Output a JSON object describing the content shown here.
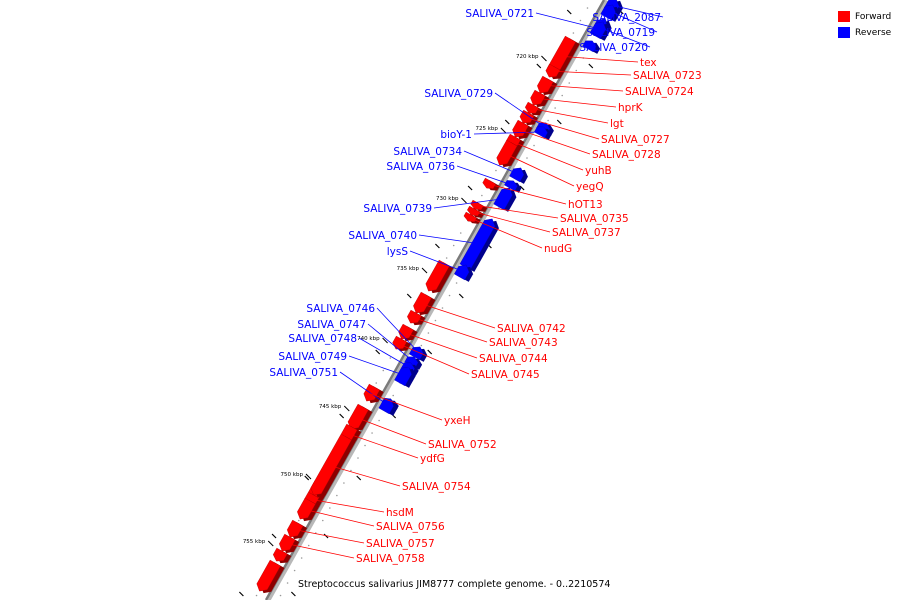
{
  "legend": {
    "forward": {
      "label": "Forward",
      "color": "#ff0000"
    },
    "reverse": {
      "label": "Reverse",
      "color": "#0000ff"
    }
  },
  "caption": "Streptococcus salivarius JIM8777 complete genome. - 0..2210574",
  "scale_labels": [
    "720 kbp",
    "725 kbp",
    "730 kbp",
    "735 kbp",
    "740 kbp",
    "745 kbp",
    "750 kbp",
    "755 kbp"
  ],
  "genes": [
    {
      "name": "SALIVA_2087",
      "strand": "reverse"
    },
    {
      "name": "SALIVA_0719",
      "strand": "reverse"
    },
    {
      "name": "SALIVA_0720",
      "strand": "reverse"
    },
    {
      "name": "SALIVA_0721",
      "strand": "reverse"
    },
    {
      "name": "tex",
      "strand": "forward"
    },
    {
      "name": "SALIVA_0723",
      "strand": "forward"
    },
    {
      "name": "SALIVA_0724",
      "strand": "forward"
    },
    {
      "name": "SALIVA_0729",
      "strand": "reverse"
    },
    {
      "name": "hprK",
      "strand": "forward"
    },
    {
      "name": "lgt",
      "strand": "forward"
    },
    {
      "name": "bioY-1",
      "strand": "reverse"
    },
    {
      "name": "SALIVA_0727",
      "strand": "forward"
    },
    {
      "name": "SALIVA_0734",
      "strand": "reverse"
    },
    {
      "name": "SALIVA_0728",
      "strand": "forward"
    },
    {
      "name": "SALIVA_0736",
      "strand": "reverse"
    },
    {
      "name": "yuhB",
      "strand": "forward"
    },
    {
      "name": "yegQ",
      "strand": "forward"
    },
    {
      "name": "hOT13",
      "strand": "forward"
    },
    {
      "name": "SALIVA_0739",
      "strand": "reverse"
    },
    {
      "name": "SALIVA_0735",
      "strand": "forward"
    },
    {
      "name": "SALIVA_0737",
      "strand": "forward"
    },
    {
      "name": "SALIVA_0740",
      "strand": "reverse"
    },
    {
      "name": "nudG",
      "strand": "forward"
    },
    {
      "name": "lysS",
      "strand": "reverse"
    },
    {
      "name": "SALIVA_0746",
      "strand": "reverse"
    },
    {
      "name": "SALIVA_0742",
      "strand": "forward"
    },
    {
      "name": "SALIVA_0747",
      "strand": "reverse"
    },
    {
      "name": "SALIVA_0748",
      "strand": "reverse"
    },
    {
      "name": "SALIVA_0743",
      "strand": "forward"
    },
    {
      "name": "SALIVA_0749",
      "strand": "reverse"
    },
    {
      "name": "SALIVA_0744",
      "strand": "forward"
    },
    {
      "name": "SALIVA_0751",
      "strand": "reverse"
    },
    {
      "name": "SALIVA_0745",
      "strand": "forward"
    },
    {
      "name": "yxeH",
      "strand": "forward"
    },
    {
      "name": "SALIVA_0752",
      "strand": "forward"
    },
    {
      "name": "ydfG",
      "strand": "forward"
    },
    {
      "name": "SALIVA_0754",
      "strand": "forward"
    },
    {
      "name": "hsdM",
      "strand": "forward"
    },
    {
      "name": "SALIVA_0756",
      "strand": "forward"
    },
    {
      "name": "SALIVA_0757",
      "strand": "forward"
    },
    {
      "name": "SALIVA_0758",
      "strand": "forward"
    }
  ]
}
